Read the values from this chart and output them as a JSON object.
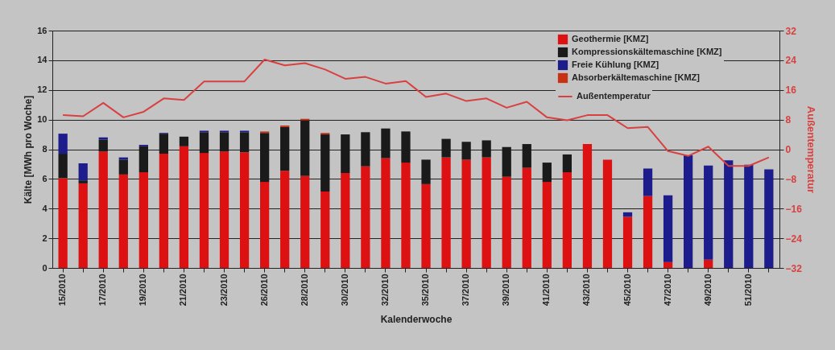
{
  "chart_data": {
    "type": "bar",
    "stacked": true,
    "xlabel": "Kalenderwoche",
    "ylabel": "Kälte [MWh pro Woche]",
    "y2label": "Außentemperatur",
    "categories": [
      "15/2010",
      null,
      "17/2010",
      null,
      "19/2010",
      null,
      "21/2010",
      null,
      "23/2010",
      null,
      "26/2010",
      null,
      "28/2010",
      null,
      "30/2010",
      null,
      "32/2010",
      null,
      "35/2010",
      null,
      "37/2010",
      null,
      "39/2010",
      null,
      "41/2010",
      null,
      "43/2010",
      null,
      "45/2010",
      null,
      "47/2010",
      null,
      "49/2010",
      null,
      "51/2010",
      null
    ],
    "series": [
      {
        "name": "Geothermie [KMZ]",
        "color": "#dd1111",
        "values": [
          6.05,
          5.7,
          7.85,
          6.3,
          6.45,
          7.7,
          8.2,
          7.75,
          7.85,
          7.8,
          5.8,
          6.55,
          6.2,
          5.15,
          6.4,
          6.85,
          7.4,
          7.1,
          5.65,
          7.45,
          7.3,
          7.45,
          6.15,
          6.75,
          5.8,
          6.45,
          8.35,
          7.3,
          3.45,
          4.85,
          0.4,
          0,
          0.55,
          0,
          0,
          0
        ]
      },
      {
        "name": "Kompressionskältemaschine [KMZ]",
        "color": "#1a1a1a",
        "values": [
          1.65,
          0.2,
          0.8,
          1.0,
          1.75,
          1.35,
          0.65,
          1.4,
          1.3,
          1.35,
          3.3,
          2.95,
          3.75,
          3.85,
          2.6,
          2.3,
          2.0,
          2.1,
          1.65,
          1.25,
          1.2,
          1.15,
          2.0,
          1.6,
          1.3,
          1.2,
          0,
          0,
          0,
          0,
          0,
          0,
          0,
          0,
          0,
          0
        ]
      },
      {
        "name": "Freie Kühlung [KMZ]",
        "color": "#1c1c8c",
        "values": [
          1.35,
          1.15,
          0.15,
          0.15,
          0.1,
          0.05,
          0,
          0.1,
          0.1,
          0.1,
          0,
          0,
          0,
          0,
          0,
          0,
          0,
          0,
          0,
          0,
          0,
          0,
          0,
          0,
          0,
          0,
          0,
          0,
          0.3,
          1.85,
          4.5,
          7.6,
          6.35,
          7.25,
          6.95,
          6.65
        ]
      },
      {
        "name": "Absorberkältemaschine [KMZ]",
        "color": "#c83212",
        "values": [
          0,
          0,
          0,
          0,
          0,
          0,
          0,
          0,
          0,
          0,
          0.1,
          0.1,
          0.1,
          0.1,
          0,
          0,
          0,
          0,
          0,
          0,
          0,
          0,
          0,
          0,
          0,
          0,
          0,
          0,
          0,
          0,
          0,
          0,
          0,
          0,
          0,
          0
        ]
      },
      {
        "name": "Außentemperatur",
        "type": "line",
        "axis": "y2",
        "color": "#d94040",
        "values": [
          9.2,
          8.9,
          12.5,
          8.6,
          10.1,
          13.7,
          13.3,
          18.3,
          18.3,
          18.3,
          24.2,
          22.6,
          23.2,
          21.5,
          19.0,
          19.5,
          17.7,
          18.4,
          14.1,
          15.0,
          13.0,
          13.7,
          11.2,
          12.8,
          8.6,
          7.8,
          9.2,
          9.2,
          5.7,
          6.0,
          -0.5,
          -1.8,
          0.7,
          -4.5,
          -4.5,
          -2.2
        ]
      }
    ],
    "ylim": [
      0,
      16
    ],
    "yticks": [
      0,
      2,
      4,
      6,
      8,
      10,
      12,
      14,
      16
    ],
    "y2lim": [
      -32,
      32
    ],
    "y2ticks": [
      -32,
      -24,
      -16,
      -8,
      0,
      8,
      16,
      24,
      32
    ],
    "grid": "y",
    "legend": "top right"
  }
}
